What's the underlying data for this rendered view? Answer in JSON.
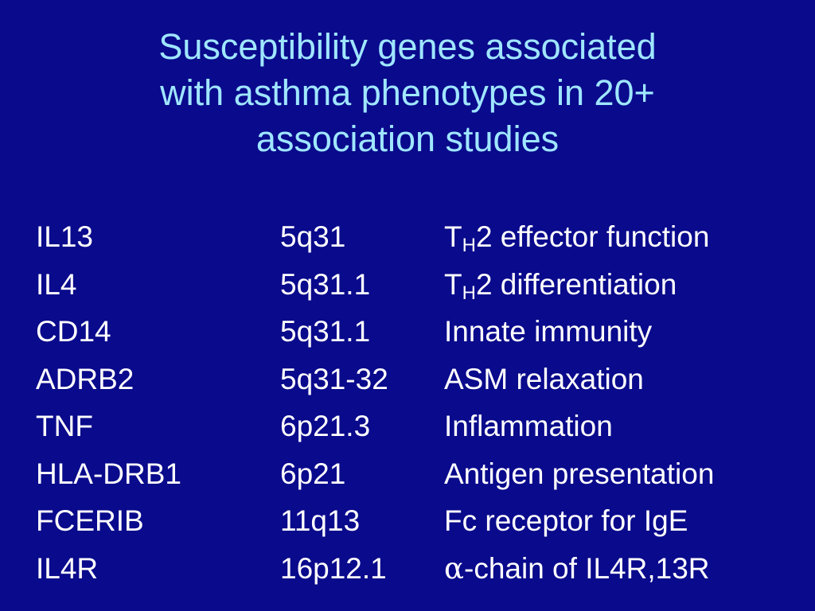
{
  "slide": {
    "title_lines": [
      "Susceptibility genes associated",
      "with asthma phenotypes in 20+",
      "association studies"
    ]
  },
  "genes": [
    {
      "gene": "IL13",
      "locus": "5q31",
      "function": {
        "prefix": "T",
        "sub": "H",
        "text": "2 effector function"
      }
    },
    {
      "gene": "IL4",
      "locus": "5q31.1",
      "function": {
        "prefix": "T",
        "sub": "H",
        "text": "2 differentiation"
      }
    },
    {
      "gene": "CD14",
      "locus": "5q31.1",
      "function": {
        "text": "Innate immunity"
      }
    },
    {
      "gene": "ADRB2",
      "locus": "5q31-32",
      "function": {
        "text": "ASM relaxation"
      }
    },
    {
      "gene": "TNF",
      "locus": "6p21.3",
      "function": {
        "text": "Inflammation"
      }
    },
    {
      "gene": "HLA-DRB1",
      "locus": "6p21",
      "function": {
        "text": "Antigen presentation"
      }
    },
    {
      "gene": "FCERIB",
      "locus": "11q13",
      "function": {
        "text": "Fc receptor for IgE"
      }
    },
    {
      "gene": "IL4R",
      "locus": "16p12.1",
      "function": {
        "greek": "α",
        "text": "-chain of IL4R,13R"
      }
    }
  ],
  "colors": {
    "background": "#0a0a8c",
    "title": "#9fe6ff",
    "body_text": "#ffffff"
  }
}
